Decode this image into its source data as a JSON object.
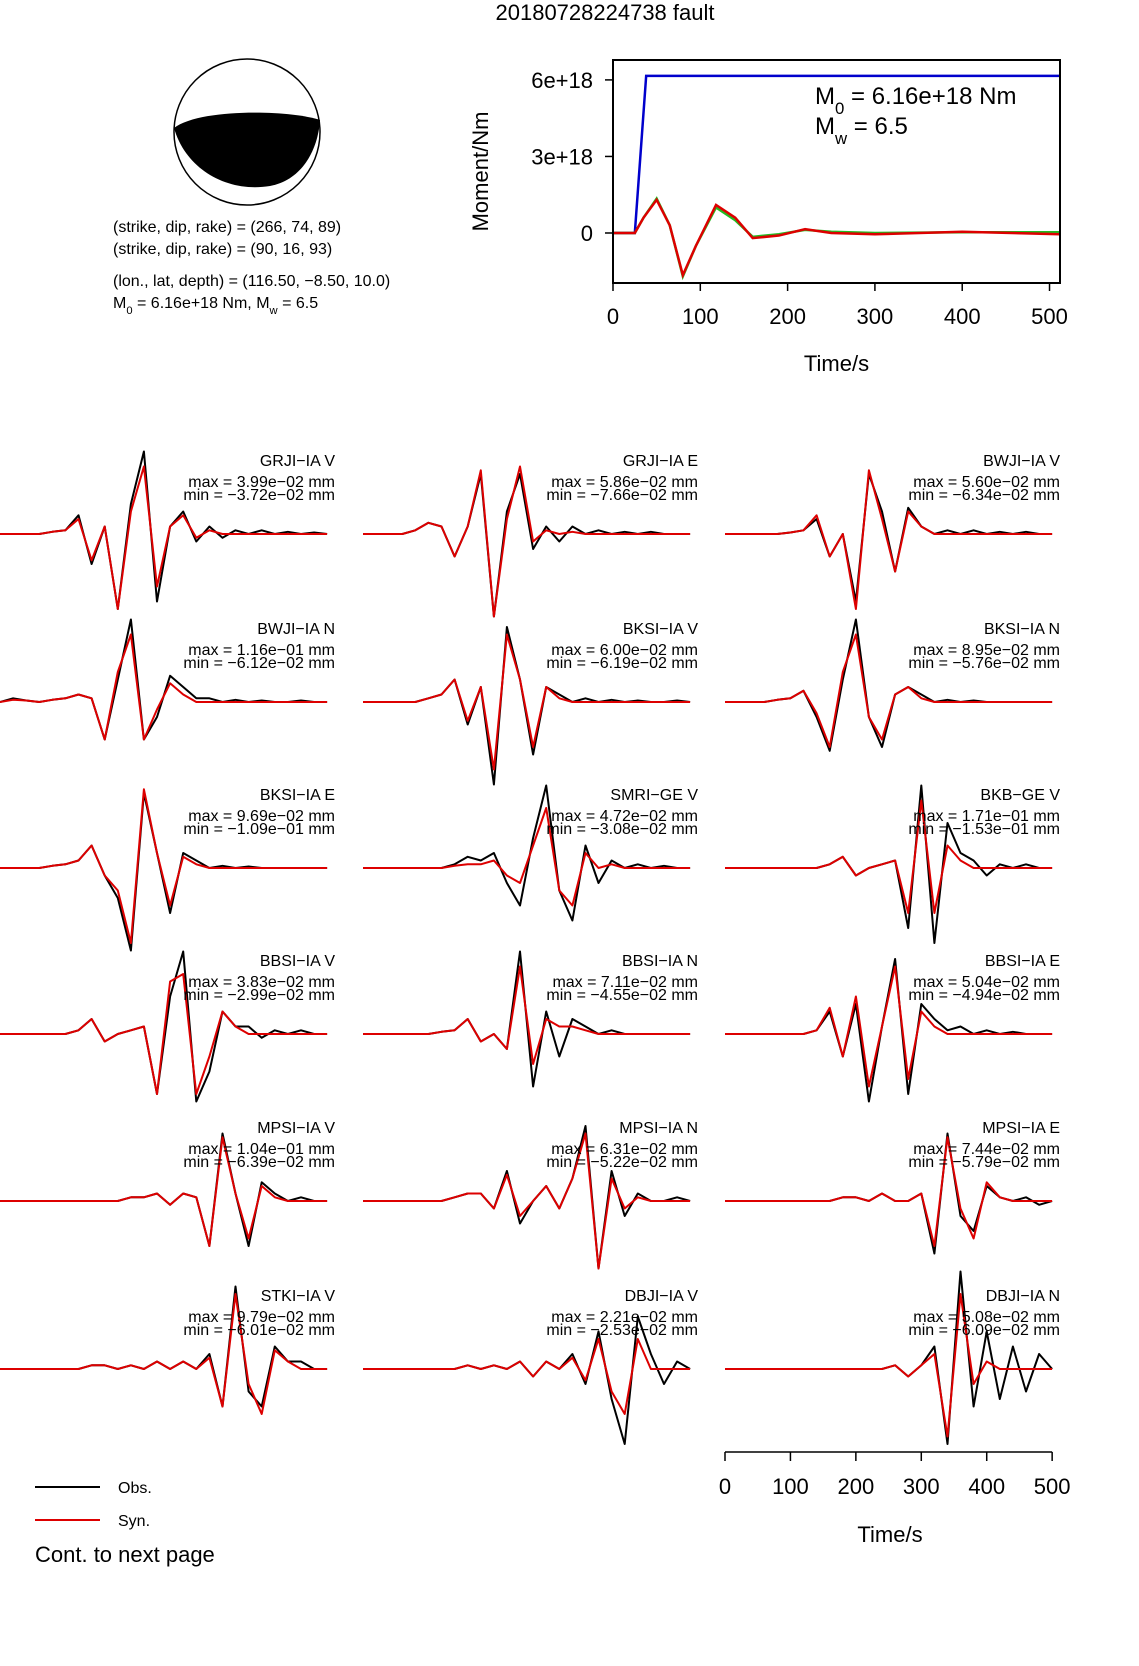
{
  "title": "20180728224738 fault",
  "mechanism": {
    "lines": [
      "(strike, dip, rake) = (266, 74, 89)",
      "(strike, dip, rake) = (90, 16, 93)",
      "(lon., lat, depth) = (116.50, −8.50, 10.0)"
    ],
    "summary": [
      "M",
      "0",
      " = 6.16e+18 Nm, M",
      "w",
      " = 6.5"
    ]
  },
  "chart_data": {
    "type": "line",
    "ylabel": "Moment/Nm",
    "xlabel": "Time/s",
    "xlim": [
      0,
      512
    ],
    "xticks": [
      0,
      100,
      200,
      300,
      400,
      500
    ],
    "ylim": [
      -1.96e+18,
      6.78e+18
    ],
    "yticks": [
      {
        "value": 6e+18,
        "label": "6e+18"
      },
      {
        "value": 3e+18,
        "label": "3e+18"
      },
      0
    ],
    "annotations": [
      [
        "M",
        "0",
        " = 6.16e+18 Nm"
      ],
      [
        "M",
        "w",
        " = 6.5"
      ]
    ],
    "series": [
      {
        "color": "#0000cc",
        "x": [
          0,
          25,
          38,
          512
        ],
        "values": [
          0,
          0,
          6.16e+18,
          6.16e+18
        ]
      },
      {
        "color": "#22bb22",
        "x": [
          0,
          25,
          35,
          50,
          65,
          80,
          95,
          118,
          140,
          160,
          190,
          220,
          250,
          300,
          400,
          512
        ],
        "values": [
          0,
          0,
          6e+17,
          1.35e+18,
          3e+17,
          -1.7e+18,
          -5e+17,
          1e+18,
          5e+17,
          -1.5e+17,
          -5e+16,
          1.2e+17,
          5e+16,
          0,
          3e+16,
          3e+16
        ]
      },
      {
        "color": "#dd0000",
        "x": [
          0,
          25,
          35,
          50,
          65,
          80,
          95,
          118,
          140,
          160,
          190,
          220,
          250,
          300,
          400,
          512
        ],
        "values": [
          0,
          0,
          6e+17,
          1.3e+18,
          3e+17,
          -1.65e+18,
          -5e+17,
          1.1e+18,
          6e+17,
          -2e+17,
          -1e+17,
          1.5e+17,
          0,
          -5e+16,
          5e+16,
          -5e+16
        ]
      }
    ]
  },
  "legend": [
    {
      "name": "Obs.",
      "color": "#000000"
    },
    {
      "name": "Syn.",
      "color": "#dd0000"
    }
  ],
  "footer": "Cont. to next page",
  "time_axis": {
    "xlim": [
      0,
      512
    ],
    "xticks": [
      0,
      100,
      200,
      300,
      400,
      500
    ],
    "xlabel": "Time/s"
  },
  "time": [
    0,
    20,
    40,
    60,
    80,
    100,
    120,
    140,
    160,
    180,
    200,
    220,
    240,
    260,
    280,
    300,
    320,
    340,
    360,
    380,
    400,
    420,
    440,
    460,
    480,
    500
  ],
  "panels": [
    {
      "station": "GRJI−IA V",
      "max": "max = 3.99e−02 mm",
      "min": "min = −3.72e−02 mm",
      "obs": [
        0,
        0,
        0,
        0,
        0.03,
        0.05,
        0.25,
        -0.4,
        0.1,
        -1.0,
        0.4,
        1.1,
        -0.9,
        0.1,
        0.3,
        -0.1,
        0.1,
        -0.05,
        0.05,
        0,
        0.05,
        0,
        0.03,
        0,
        0.02,
        0
      ],
      "syn": [
        0,
        0,
        0,
        0,
        0.03,
        0.05,
        0.2,
        -0.35,
        0.1,
        -1.0,
        0.3,
        0.9,
        -0.7,
        0.1,
        0.25,
        -0.05,
        0.05,
        0,
        0,
        0,
        0,
        0,
        0,
        0,
        0,
        0
      ]
    },
    {
      "station": "GRJI−IA E",
      "max": "max = 5.86e−02 mm",
      "min": "min = −7.66e−02 mm",
      "obs": [
        0,
        0,
        0,
        0,
        0.05,
        0.15,
        0.1,
        -0.3,
        0.1,
        0.8,
        -1.1,
        0.3,
        0.8,
        -0.2,
        0.1,
        -0.1,
        0.1,
        0,
        0.05,
        0,
        0.03,
        0,
        0.03,
        0,
        0,
        0
      ],
      "syn": [
        0,
        0,
        0,
        0,
        0.05,
        0.15,
        0.1,
        -0.3,
        0.1,
        0.85,
        -1.1,
        0.2,
        0.9,
        -0.1,
        0.05,
        0,
        0.03,
        0,
        0,
        0,
        0,
        0,
        0,
        0,
        0,
        0
      ]
    },
    {
      "station": "BWJI−IA V",
      "max": "max = 5.60e−02 mm",
      "min": "min = −6.34e−02 mm",
      "obs": [
        0,
        0,
        0,
        0,
        0,
        0.02,
        0.05,
        0.2,
        -0.3,
        0,
        -0.9,
        0.8,
        0.3,
        -0.5,
        0.35,
        0.1,
        0,
        0.05,
        0,
        0.05,
        0,
        0.03,
        0,
        0.03,
        0,
        0
      ],
      "syn": [
        0,
        0,
        0,
        0,
        0,
        0.02,
        0.05,
        0.25,
        -0.3,
        0,
        -1.0,
        0.85,
        0.2,
        -0.5,
        0.3,
        0.1,
        0,
        0,
        0,
        0,
        0,
        0,
        0,
        0,
        0,
        0
      ]
    },
    {
      "station": "BWJI−IA N",
      "max": "max = 1.16e−01 mm",
      "min": "min = −6.12e−02 mm",
      "obs": [
        0,
        0.05,
        0.02,
        0,
        0.03,
        0.05,
        0.1,
        0.05,
        -0.5,
        0.3,
        1.1,
        -0.5,
        -0.2,
        0.35,
        0.2,
        0.05,
        0.05,
        0,
        0.03,
        0,
        0.02,
        0,
        0,
        0.02,
        0,
        0
      ],
      "syn": [
        0,
        0.03,
        0.02,
        0,
        0.03,
        0.05,
        0.1,
        0.05,
        -0.5,
        0.4,
        0.9,
        -0.5,
        -0.1,
        0.25,
        0.1,
        0,
        0,
        0,
        0,
        0,
        0,
        0,
        0,
        0,
        0,
        0
      ]
    },
    {
      "station": "BKSI−IA V",
      "max": "max = 6.00e−02 mm",
      "min": "min = −6.19e−02 mm",
      "obs": [
        0,
        0,
        0,
        0,
        0,
        0.05,
        0.1,
        0.3,
        -0.3,
        0.2,
        -1.1,
        1.0,
        0.3,
        -0.7,
        0.2,
        0.1,
        0,
        0.05,
        0,
        0.03,
        0,
        0.02,
        0,
        0,
        0.02,
        0
      ],
      "syn": [
        0,
        0,
        0,
        0,
        0,
        0.05,
        0.1,
        0.3,
        -0.25,
        0.2,
        -0.9,
        0.9,
        0.3,
        -0.6,
        0.2,
        0.05,
        0,
        0,
        0,
        0,
        0,
        0,
        0,
        0,
        0,
        0
      ]
    },
    {
      "station": "BKSI−IA N",
      "max": "max = 8.95e−02 mm",
      "min": "min = −5.76e−02 mm",
      "obs": [
        0,
        0,
        0,
        0,
        0.03,
        0.05,
        0.15,
        -0.2,
        -0.65,
        0.3,
        1.1,
        -0.2,
        -0.6,
        0.1,
        0.2,
        0.1,
        0,
        0.03,
        0,
        0.02,
        0,
        0,
        0,
        0,
        0,
        0
      ],
      "syn": [
        0,
        0,
        0,
        0,
        0.03,
        0.05,
        0.15,
        -0.15,
        -0.6,
        0.4,
        0.9,
        -0.2,
        -0.5,
        0.1,
        0.2,
        0.05,
        0,
        0,
        0,
        0,
        0,
        0,
        0,
        0,
        0,
        0
      ]
    },
    {
      "station": "BKSI−IA E",
      "max": "max = 9.69e−02 mm",
      "min": "min = −1.09e−01 mm",
      "obs": [
        0,
        0,
        0,
        0,
        0.03,
        0.05,
        0.1,
        0.3,
        -0.1,
        -0.4,
        -1.1,
        1.0,
        0.2,
        -0.6,
        0.2,
        0.1,
        0,
        0.03,
        0,
        0.02,
        0,
        0,
        0,
        0,
        0,
        0
      ],
      "syn": [
        0,
        0,
        0,
        0,
        0.03,
        0.05,
        0.1,
        0.3,
        -0.1,
        -0.3,
        -1.0,
        1.05,
        0.2,
        -0.5,
        0.15,
        0.05,
        0,
        0,
        0,
        0,
        0,
        0,
        0,
        0,
        0,
        0
      ]
    },
    {
      "station": "SMRI−GE V",
      "max": "max = 4.72e−02 mm",
      "min": "min = −3.08e−02 mm",
      "obs": [
        0,
        0,
        0,
        0,
        0,
        0,
        0,
        0.05,
        0.15,
        0.1,
        0.2,
        -0.2,
        -0.5,
        0.4,
        1.1,
        -0.3,
        -0.7,
        0.3,
        -0.2,
        0.1,
        0,
        0.05,
        0,
        0.03,
        0,
        0
      ],
      "syn": [
        0,
        0,
        0,
        0,
        0,
        0,
        0,
        0.03,
        0.05,
        0.05,
        0.1,
        -0.1,
        -0.2,
        0.3,
        0.8,
        -0.3,
        -0.5,
        0.2,
        0,
        0.05,
        0,
        0,
        0,
        0,
        0,
        0
      ]
    },
    {
      "station": "BKB−GE V",
      "max": "max = 1.71e−01 mm",
      "min": "min = −1.53e−01 mm",
      "obs": [
        0,
        0,
        0,
        0,
        0,
        0,
        0,
        0,
        0.05,
        0.15,
        -0.1,
        0,
        0.05,
        0.1,
        -0.8,
        1.1,
        -1.0,
        0.6,
        0.2,
        0.1,
        -0.1,
        0.05,
        0,
        0.05,
        0,
        0
      ],
      "syn": [
        0,
        0,
        0,
        0,
        0,
        0,
        0,
        0,
        0.05,
        0.15,
        -0.1,
        0,
        0.05,
        0.1,
        -0.6,
        0.9,
        -0.6,
        0.3,
        0.1,
        0,
        0,
        0,
        0,
        0,
        0,
        0
      ]
    },
    {
      "station": "BBSI−IA V",
      "max": "max = 3.83e−02 mm",
      "min": "min = −2.99e−02 mm",
      "obs": [
        0,
        0,
        0,
        0,
        0,
        0,
        0.05,
        0.2,
        -0.1,
        0,
        0.05,
        0.1,
        -0.8,
        0.5,
        1.1,
        -0.9,
        -0.5,
        0.3,
        0.1,
        0.1,
        -0.05,
        0.05,
        0,
        0.05,
        0,
        0
      ],
      "syn": [
        0,
        0,
        0,
        0,
        0,
        0,
        0.05,
        0.2,
        -0.1,
        0,
        0.05,
        0.1,
        -0.8,
        0.7,
        0.8,
        -0.8,
        -0.3,
        0.3,
        0.1,
        0,
        0,
        0,
        0,
        0,
        0,
        0
      ]
    },
    {
      "station": "BBSI−IA N",
      "max": "max = 7.11e−02 mm",
      "min": "min = −4.55e−02 mm",
      "obs": [
        0,
        0,
        0,
        0,
        0,
        0,
        0.03,
        0.05,
        0.2,
        -0.1,
        0,
        -0.2,
        1.1,
        -0.7,
        0.3,
        -0.3,
        0.2,
        0.1,
        0,
        0.05,
        0,
        0,
        0,
        0,
        0,
        0
      ],
      "syn": [
        0,
        0,
        0,
        0,
        0,
        0,
        0.03,
        0.05,
        0.2,
        -0.1,
        0,
        -0.2,
        0.9,
        -0.4,
        0.2,
        0.1,
        0.1,
        0.05,
        0,
        0,
        0,
        0,
        0,
        0,
        0,
        0
      ]
    },
    {
      "station": "BBSI−IA E",
      "max": "max = 5.04e−02 mm",
      "min": "min = −4.94e−02 mm",
      "obs": [
        0,
        0,
        0,
        0,
        0,
        0,
        0,
        0.05,
        0.3,
        -0.3,
        0.4,
        -0.9,
        0.1,
        1.0,
        -0.8,
        0.4,
        0.2,
        0.05,
        0.1,
        0,
        0.05,
        0,
        0.03,
        0,
        0,
        0
      ],
      "syn": [
        0,
        0,
        0,
        0,
        0,
        0,
        0,
        0.05,
        0.35,
        -0.3,
        0.5,
        -0.7,
        0.1,
        0.9,
        -0.6,
        0.3,
        0.1,
        0,
        0,
        0,
        0,
        0,
        0,
        0,
        0,
        0
      ]
    },
    {
      "station": "MPSI−IA V",
      "max": "max = 1.04e−01 mm",
      "min": "min = −6.39e−02 mm",
      "obs": [
        0,
        0,
        0,
        0,
        0,
        0,
        0,
        0,
        0,
        0,
        0.05,
        0.05,
        0.1,
        -0.05,
        0.1,
        0.05,
        -0.6,
        0.9,
        0.1,
        -0.6,
        0.25,
        0.1,
        0,
        0.05,
        0,
        0
      ],
      "syn": [
        0,
        0,
        0,
        0,
        0,
        0,
        0,
        0,
        0,
        0,
        0.05,
        0.05,
        0.1,
        -0.05,
        0.1,
        0.05,
        -0.6,
        0.85,
        0.1,
        -0.5,
        0.2,
        0.05,
        0,
        0,
        0,
        0
      ]
    },
    {
      "station": "MPSI−IA N",
      "max": "max = 6.31e−02 mm",
      "min": "min = −5.22e−02 mm",
      "obs": [
        0,
        0,
        0,
        0,
        0,
        0,
        0,
        0.05,
        0.1,
        0.1,
        -0.1,
        0.4,
        -0.3,
        0,
        0.2,
        -0.1,
        0.3,
        1.0,
        -0.9,
        0.4,
        -0.2,
        0.1,
        0,
        0,
        0.05,
        0
      ],
      "syn": [
        0,
        0,
        0,
        0,
        0,
        0,
        0,
        0.05,
        0.1,
        0.1,
        -0.1,
        0.35,
        -0.2,
        0,
        0.2,
        -0.1,
        0.3,
        0.9,
        -0.9,
        0.3,
        -0.1,
        0.05,
        0,
        0,
        0,
        0
      ]
    },
    {
      "station": "MPSI−IA E",
      "max": "max = 7.44e−02 mm",
      "min": "min = −5.79e−02 mm",
      "obs": [
        0,
        0,
        0,
        0,
        0,
        0,
        0,
        0,
        0,
        0.05,
        0.05,
        0,
        0.1,
        0,
        0,
        0.1,
        -0.7,
        0.9,
        -0.2,
        -0.4,
        0.2,
        0.05,
        0,
        0.05,
        -0.05,
        0
      ],
      "syn": [
        0,
        0,
        0,
        0,
        0,
        0,
        0,
        0,
        0,
        0.05,
        0.05,
        0,
        0.1,
        0,
        0,
        0.1,
        -0.6,
        0.85,
        -0.1,
        -0.5,
        0.25,
        0.05,
        0,
        0,
        0,
        0
      ]
    },
    {
      "station": "STKI−IA V",
      "max": "max = 9.79e−02 mm",
      "min": "min = −6.01e−02 mm",
      "obs": [
        0,
        0,
        0,
        0,
        0,
        0,
        0,
        0.05,
        0.05,
        0,
        0.05,
        0,
        0.1,
        0,
        0.1,
        0,
        0.2,
        -0.5,
        1.1,
        -0.3,
        -0.5,
        0.3,
        0.1,
        0.1,
        0,
        0
      ],
      "syn": [
        0,
        0,
        0,
        0,
        0,
        0,
        0,
        0.05,
        0.05,
        0,
        0.05,
        0,
        0.1,
        0,
        0.1,
        0,
        0.15,
        -0.5,
        1.0,
        -0.2,
        -0.6,
        0.25,
        0.1,
        0,
        0,
        0
      ]
    },
    {
      "station": "DBJI−IA V",
      "max": "max = 2.21e−02 mm",
      "min": "min = −2.53e−02 mm",
      "obs": [
        0,
        0,
        0,
        0,
        0,
        0,
        0,
        0,
        0.05,
        0,
        0.05,
        0,
        0.1,
        -0.1,
        0.1,
        0,
        0.2,
        -0.2,
        0.5,
        -0.4,
        -1.0,
        0.7,
        0.2,
        -0.2,
        0.1,
        0
      ],
      "syn": [
        0,
        0,
        0,
        0,
        0,
        0,
        0,
        0,
        0.05,
        0,
        0.05,
        0,
        0.1,
        -0.1,
        0.1,
        0,
        0.15,
        -0.15,
        0.4,
        -0.3,
        -0.6,
        0.4,
        0,
        0,
        0,
        0
      ]
    },
    {
      "station": "DBJI−IA N",
      "max": "max = 5.08e−02 mm",
      "min": "min = −6.09e−02 mm",
      "obs": [
        0,
        0,
        0,
        0,
        0,
        0,
        0,
        0,
        0,
        0,
        0,
        0,
        0,
        0.05,
        -0.1,
        0.05,
        0.3,
        -1.0,
        1.3,
        -0.5,
        0.5,
        -0.4,
        0.3,
        -0.3,
        0.2,
        0
      ],
      "syn": [
        0,
        0,
        0,
        0,
        0,
        0,
        0,
        0,
        0,
        0,
        0,
        0,
        0,
        0.05,
        -0.1,
        0.05,
        0.2,
        -0.9,
        1.0,
        -0.2,
        0.1,
        0,
        0,
        0,
        0,
        0
      ]
    }
  ]
}
